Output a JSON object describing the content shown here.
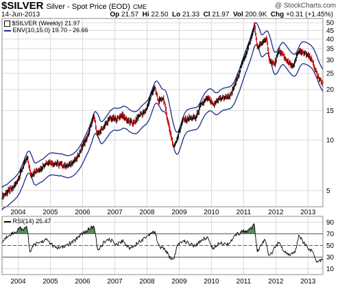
{
  "header": {
    "symbol": "$SILVER",
    "description": "Silver - Spot Price (EOD)",
    "exchange": "CME",
    "watermark": "@ StockCharts.com",
    "date": "14-Jun-2013",
    "open_label": "Op",
    "open": "21.57",
    "high_label": "Hi",
    "high": "22.50",
    "low_label": "Lo",
    "low": "21.33",
    "close_label": "Cl",
    "close": "21.97",
    "volume_label": "Vol",
    "volume": "200.9K",
    "change_label": "Chg",
    "change": "+0.31 (+1.45%)"
  },
  "legend": {
    "price": "$SILVER (Weekly) 21.97",
    "envelope": "ENV(10,15.0) 19.70 - 26.66",
    "rsi": "RSI(14) 25.47"
  },
  "colors": {
    "up": "#000000",
    "down": "#cc0000",
    "envelope": "#1a2a8c",
    "rsi_line": "#000000",
    "rsi_fill": "#5a8a5a",
    "grid": "#d8d8d8",
    "ref_line": "#555555"
  },
  "chart_data": [
    {
      "type": "line",
      "scale": "log",
      "series_name": "$SILVER (Weekly) 21.97",
      "y_ticks": [
        5,
        10,
        15,
        20,
        25,
        30,
        35,
        40,
        45,
        50
      ],
      "ylim": [
        4,
        53
      ],
      "x_ticks": [
        "2004",
        "2005",
        "2006",
        "2007",
        "2008",
        "2009",
        "2010",
        "2011",
        "2012",
        "2013"
      ],
      "xlim": [
        2003.5,
        2013.46
      ],
      "close_points": [
        [
          2003.5,
          4.6
        ],
        [
          2003.65,
          4.9
        ],
        [
          2003.8,
          5.1
        ],
        [
          2003.95,
          5.6
        ],
        [
          2004.1,
          6.6
        ],
        [
          2004.28,
          7.9
        ],
        [
          2004.38,
          6.2
        ],
        [
          2004.55,
          6.5
        ],
        [
          2004.7,
          6.8
        ],
        [
          2004.9,
          7.4
        ],
        [
          2005.1,
          7.3
        ],
        [
          2005.3,
          7.1
        ],
        [
          2005.55,
          7.0
        ],
        [
          2005.8,
          7.7
        ],
        [
          2005.95,
          8.8
        ],
        [
          2006.15,
          10.5
        ],
        [
          2006.35,
          13.8
        ],
        [
          2006.45,
          10.6
        ],
        [
          2006.65,
          12.0
        ],
        [
          2006.85,
          13.5
        ],
        [
          2007.05,
          13.3
        ],
        [
          2007.2,
          14.1
        ],
        [
          2007.45,
          12.8
        ],
        [
          2007.6,
          12.7
        ],
        [
          2007.8,
          14.3
        ],
        [
          2007.95,
          14.7
        ],
        [
          2008.1,
          18.0
        ],
        [
          2008.22,
          20.7
        ],
        [
          2008.35,
          17.0
        ],
        [
          2008.5,
          17.8
        ],
        [
          2008.65,
          12.6
        ],
        [
          2008.82,
          9.0
        ],
        [
          2008.95,
          10.5
        ],
        [
          2009.1,
          13.0
        ],
        [
          2009.3,
          13.5
        ],
        [
          2009.5,
          13.5
        ],
        [
          2009.7,
          16.5
        ],
        [
          2009.9,
          17.8
        ],
        [
          2010.05,
          16.0
        ],
        [
          2010.2,
          17.5
        ],
        [
          2010.45,
          18.0
        ],
        [
          2010.6,
          18.5
        ],
        [
          2010.75,
          22.0
        ],
        [
          2010.88,
          26.0
        ],
        [
          2011.0,
          30.5
        ],
        [
          2011.1,
          34.0
        ],
        [
          2011.22,
          40.0
        ],
        [
          2011.33,
          48.0
        ],
        [
          2011.42,
          35.0
        ],
        [
          2011.55,
          37.5
        ],
        [
          2011.7,
          40.5
        ],
        [
          2011.78,
          30.5
        ],
        [
          2011.95,
          28.0
        ],
        [
          2012.1,
          34.0
        ],
        [
          2012.25,
          31.5
        ],
        [
          2012.4,
          28.5
        ],
        [
          2012.55,
          27.5
        ],
        [
          2012.7,
          34.0
        ],
        [
          2012.85,
          33.0
        ],
        [
          2013.0,
          32.0
        ],
        [
          2013.15,
          29.0
        ],
        [
          2013.28,
          24.0
        ],
        [
          2013.38,
          22.5
        ],
        [
          2013.46,
          21.97
        ]
      ],
      "envelope_bands": "ENV(10,15.0)",
      "envelope_pct": 15,
      "envelope_period": 10
    },
    {
      "type": "line",
      "series_name": "RSI(14) 25.47",
      "y_ticks": [
        10,
        30,
        50,
        70,
        90
      ],
      "ylim": [
        0,
        100
      ],
      "x_ticks": [
        "2004",
        "2005",
        "2006",
        "2007",
        "2008",
        "2009",
        "2010",
        "2011",
        "2012",
        "2013"
      ],
      "xlim": [
        2003.5,
        2013.46
      ],
      "reference_levels": [
        30,
        50,
        70
      ],
      "points": [
        [
          2003.5,
          55
        ],
        [
          2003.7,
          68
        ],
        [
          2003.9,
          72
        ],
        [
          2004.05,
          82
        ],
        [
          2004.15,
          75
        ],
        [
          2004.27,
          84
        ],
        [
          2004.37,
          38
        ],
        [
          2004.5,
          52
        ],
        [
          2004.7,
          56
        ],
        [
          2004.9,
          60
        ],
        [
          2005.1,
          48
        ],
        [
          2005.3,
          45
        ],
        [
          2005.5,
          50
        ],
        [
          2005.75,
          58
        ],
        [
          2005.95,
          70
        ],
        [
          2006.1,
          74
        ],
        [
          2006.25,
          80
        ],
        [
          2006.36,
          84
        ],
        [
          2006.47,
          40
        ],
        [
          2006.65,
          55
        ],
        [
          2006.85,
          60
        ],
        [
          2007.05,
          52
        ],
        [
          2007.25,
          58
        ],
        [
          2007.45,
          45
        ],
        [
          2007.65,
          52
        ],
        [
          2007.85,
          60
        ],
        [
          2008.05,
          68
        ],
        [
          2008.18,
          75
        ],
        [
          2008.25,
          72
        ],
        [
          2008.38,
          48
        ],
        [
          2008.55,
          44
        ],
        [
          2008.7,
          30
        ],
        [
          2008.82,
          25
        ],
        [
          2008.95,
          50
        ],
        [
          2009.1,
          58
        ],
        [
          2009.3,
          54
        ],
        [
          2009.5,
          48
        ],
        [
          2009.7,
          60
        ],
        [
          2009.88,
          64
        ],
        [
          2010.05,
          44
        ],
        [
          2010.25,
          56
        ],
        [
          2010.45,
          52
        ],
        [
          2010.6,
          56
        ],
        [
          2010.75,
          68
        ],
        [
          2010.9,
          72
        ],
        [
          2011.0,
          76
        ],
        [
          2011.12,
          74
        ],
        [
          2011.25,
          80
        ],
        [
          2011.33,
          86
        ],
        [
          2011.42,
          38
        ],
        [
          2011.55,
          52
        ],
        [
          2011.68,
          60
        ],
        [
          2011.78,
          30
        ],
        [
          2011.95,
          44
        ],
        [
          2012.1,
          56
        ],
        [
          2012.25,
          40
        ],
        [
          2012.45,
          34
        ],
        [
          2012.6,
          38
        ],
        [
          2012.72,
          70
        ],
        [
          2012.82,
          58
        ],
        [
          2013.0,
          46
        ],
        [
          2013.15,
          38
        ],
        [
          2013.28,
          22
        ],
        [
          2013.38,
          25
        ],
        [
          2013.46,
          25.47
        ]
      ]
    }
  ]
}
